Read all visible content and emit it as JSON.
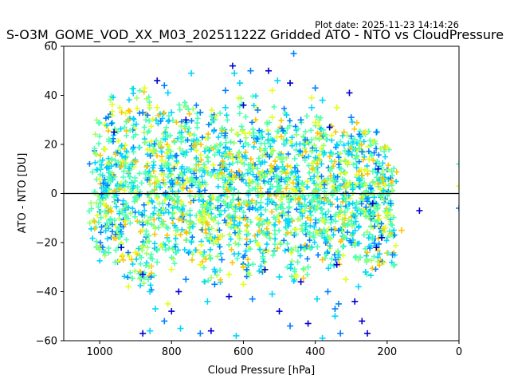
{
  "chart_data": {
    "type": "scatter",
    "title": "S-O3M_GOME_VOD_XX_M03_20251122Z Gridded ATO - NTO vs CloudPressure",
    "plot_date": "Plot date: 2025-11-23 14:14:26",
    "xlabel": "Cloud Pressure [hPa]",
    "ylabel": "ATO - NTO [DU]",
    "xlim": [
      1100,
      0
    ],
    "ylim": [
      -60,
      60
    ],
    "x_inverted": true,
    "x_ticks": [
      1000,
      800,
      600,
      400,
      200,
      0
    ],
    "y_ticks": [
      -60,
      -40,
      -20,
      0,
      20,
      40,
      60
    ],
    "x_tick_labels": [
      "1000",
      "800",
      "600",
      "400",
      "200",
      "0"
    ],
    "y_tick_labels": [
      "−60",
      "−40",
      "−20",
      "0",
      "20",
      "40",
      "60"
    ],
    "reference_line_y": 0,
    "marker": "plus",
    "grid": false,
    "colors": [
      "#0000cd",
      "#007fff",
      "#00d4ff",
      "#4dffb3",
      "#a0ff60",
      "#e5ff1a",
      "#ffc400"
    ],
    "series": [
      {
        "values": [
          [
            1000,
            -5
          ],
          [
            985,
            12
          ],
          [
            970,
            -8
          ],
          [
            950,
            20
          ],
          [
            930,
            2
          ],
          [
            910,
            -15
          ],
          [
            890,
            24
          ],
          [
            870,
            -20
          ],
          [
            850,
            6
          ],
          [
            830,
            15
          ],
          [
            810,
            -3
          ],
          [
            790,
            10
          ],
          [
            770,
            -12
          ],
          [
            750,
            18
          ],
          [
            730,
            -6
          ],
          [
            710,
            4
          ],
          [
            690,
            -18
          ],
          [
            670,
            14
          ],
          [
            650,
            -2
          ],
          [
            630,
            8
          ],
          [
            610,
            -10
          ],
          [
            590,
            20
          ],
          [
            570,
            -14
          ],
          [
            550,
            6
          ],
          [
            530,
            -4
          ],
          [
            510,
            16
          ],
          [
            490,
            -8
          ],
          [
            470,
            10
          ],
          [
            450,
            -16
          ],
          [
            430,
            2
          ],
          [
            410,
            12
          ],
          [
            390,
            -6
          ],
          [
            370,
            8
          ],
          [
            350,
            -12
          ],
          [
            330,
            4
          ],
          [
            310,
            -2
          ],
          [
            290,
            10
          ],
          [
            270,
            -8
          ],
          [
            250,
            6
          ],
          [
            230,
            -14
          ],
          [
            210,
            2
          ],
          [
            200,
            -10
          ]
        ]
      },
      {
        "values": [
          [
            880,
            -57
          ],
          [
            860,
            -56
          ],
          [
            820,
            -52
          ],
          [
            800,
            -48
          ],
          [
            775,
            -55
          ],
          [
            720,
            -57
          ],
          [
            690,
            -56
          ],
          [
            620,
            -58
          ],
          [
            470,
            -54
          ],
          [
            420,
            -53
          ],
          [
            380,
            -59
          ],
          [
            330,
            -57
          ],
          [
            255,
            -57
          ],
          [
            845,
            -47
          ],
          [
            810,
            -45
          ],
          [
            700,
            -44
          ],
          [
            640,
            -42
          ],
          [
            575,
            -43
          ],
          [
            500,
            -48
          ],
          [
            395,
            -43
          ],
          [
            345,
            -47
          ],
          [
            270,
            -52
          ],
          [
            920,
            -38
          ],
          [
            860,
            -40
          ],
          [
            780,
            -40
          ],
          [
            680,
            -37
          ],
          [
            600,
            -37
          ],
          [
            520,
            -41
          ],
          [
            440,
            -36
          ],
          [
            365,
            -40
          ],
          [
            630,
            52
          ],
          [
            625,
            49
          ],
          [
            580,
            50
          ],
          [
            530,
            50
          ],
          [
            505,
            46
          ],
          [
            460,
            57
          ],
          [
            840,
            46
          ],
          [
            820,
            44
          ],
          [
            875,
            43
          ],
          [
            810,
            41
          ],
          [
            745,
            49
          ],
          [
            650,
            42
          ],
          [
            410,
            39
          ],
          [
            380,
            38
          ],
          [
            305,
            41
          ],
          [
            300,
            31
          ],
          [
            340,
            35
          ],
          [
            410,
            35
          ],
          [
            470,
            45
          ],
          [
            400,
            43
          ],
          [
            520,
            42
          ],
          [
            610,
            45
          ],
          [
            0,
            12
          ],
          [
            0,
            -6
          ],
          [
            0,
            3
          ],
          [
            110,
            -7
          ],
          [
            160,
            -15
          ],
          [
            180,
            -29
          ],
          [
            185,
            -25
          ],
          [
            200,
            -8
          ],
          [
            215,
            -18
          ],
          [
            225,
            -9
          ],
          [
            240,
            9
          ],
          [
            230,
            25
          ],
          [
            260,
            25
          ],
          [
            240,
            -4
          ],
          [
            255,
            -24
          ],
          [
            280,
            -38
          ],
          [
            290,
            -44
          ],
          [
            335,
            -45
          ],
          [
            345,
            -50
          ],
          [
            260,
            -32
          ],
          [
            275,
            -26
          ],
          [
            300,
            -20
          ],
          [
            315,
            -35
          ],
          [
            340,
            -29
          ],
          [
            380,
            -27
          ],
          [
            420,
            -30
          ],
          [
            440,
            -22
          ],
          [
            500,
            -34
          ],
          [
            540,
            -31
          ],
          [
            600,
            -30
          ],
          [
            640,
            -33
          ],
          [
            660,
            -27
          ],
          [
            720,
            -29
          ],
          [
            760,
            -35
          ],
          [
            800,
            -31
          ],
          [
            840,
            -28
          ],
          [
            880,
            -33
          ],
          [
            900,
            -24
          ],
          [
            940,
            -22
          ],
          [
            960,
            -18
          ],
          [
            980,
            -12
          ],
          [
            990,
            4
          ],
          [
            985,
            18
          ],
          [
            960,
            25
          ],
          [
            920,
            30
          ],
          [
            880,
            33
          ],
          [
            840,
            35
          ],
          [
            800,
            33
          ],
          [
            760,
            30
          ],
          [
            720,
            33
          ],
          [
            680,
            30
          ],
          [
            650,
            35
          ],
          [
            600,
            36
          ],
          [
            560,
            34
          ],
          [
            520,
            31
          ],
          [
            480,
            32
          ],
          [
            440,
            30
          ],
          [
            400,
            29
          ],
          [
            360,
            27
          ],
          [
            320,
            25
          ],
          [
            290,
            22
          ],
          [
            270,
            17
          ],
          [
            250,
            14
          ],
          [
            225,
            10
          ],
          [
            210,
            6
          ],
          [
            195,
            0
          ],
          [
            190,
            -4
          ],
          [
            205,
            -14
          ],
          [
            230,
            -22
          ]
        ]
      }
    ]
  }
}
